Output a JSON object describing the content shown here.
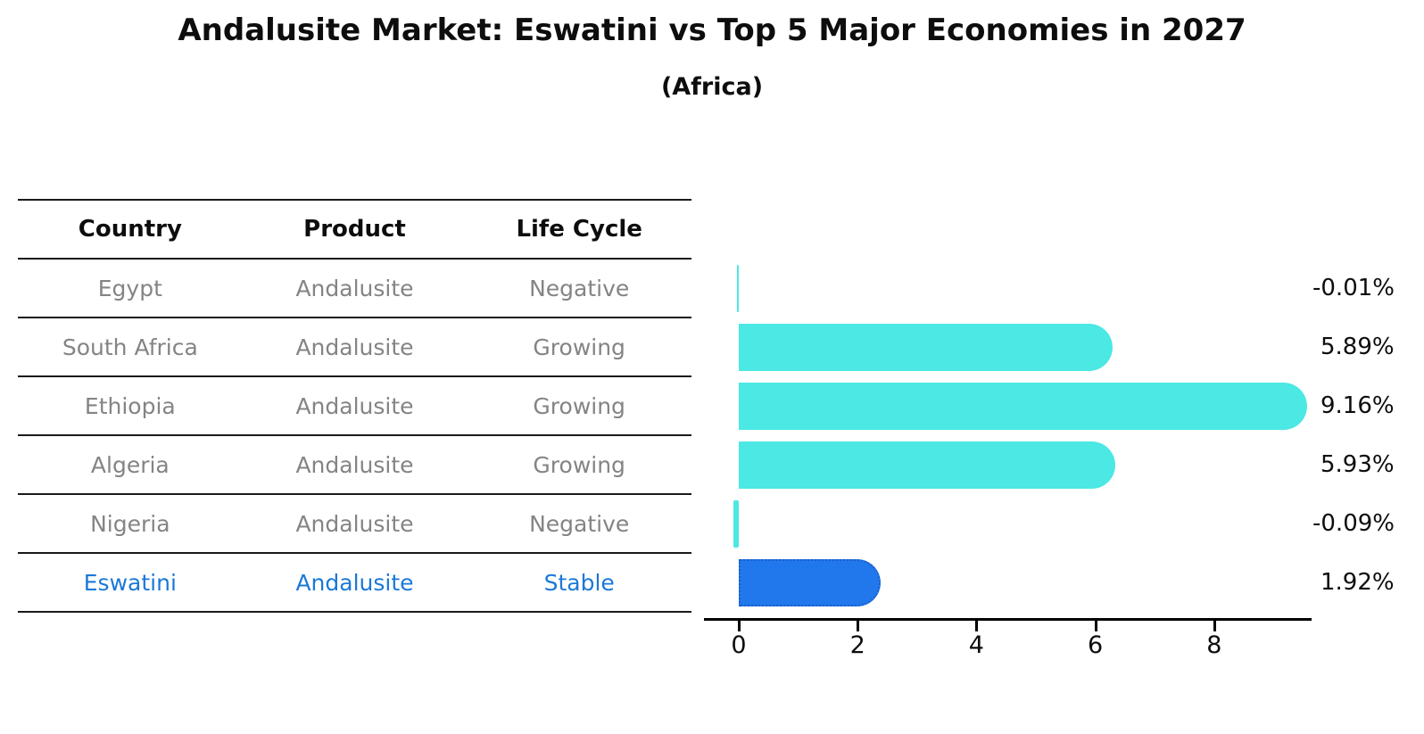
{
  "title": "Andalusite Market: Eswatini vs Top 5 Major Economies in 2027",
  "subtitle": "(Africa)",
  "colors": {
    "bar_default": "#4be8e4",
    "bar_highlight": "#2178ec",
    "bar_highlight_border": "#1a5fc8",
    "highlight_text": "#1b78d8",
    "table_text": "#848484",
    "header_text": "#0d0d0d",
    "axis": "#000000"
  },
  "table": {
    "headers": [
      "Country",
      "Product",
      "Life Cycle"
    ],
    "rows": [
      {
        "country": "Egypt",
        "product": "Andalusite",
        "life_cycle": "Negative"
      },
      {
        "country": "South Africa",
        "product": "Andalusite",
        "life_cycle": "Growing"
      },
      {
        "country": "Ethiopia",
        "product": "Andalusite",
        "life_cycle": "Growing"
      },
      {
        "country": "Algeria",
        "product": "Andalusite",
        "life_cycle": "Growing"
      },
      {
        "country": "Nigeria",
        "product": "Andalusite",
        "life_cycle": "Negative"
      },
      {
        "country": "Eswatini",
        "product": "Andalusite",
        "life_cycle": "Stable"
      }
    ],
    "highlight_row": "Eswatini"
  },
  "chart_data": {
    "type": "bar",
    "orientation": "horizontal",
    "categories": [
      "Egypt",
      "South Africa",
      "Ethiopia",
      "Algeria",
      "Nigeria",
      "Eswatini"
    ],
    "values": [
      -0.01,
      5.89,
      9.16,
      5.93,
      -0.09,
      1.92
    ],
    "value_labels": [
      "-0.01%",
      "5.89%",
      "9.16%",
      "5.93%",
      "-0.09%",
      "1.92%"
    ],
    "highlight_index": 5,
    "x_ticks": [
      0,
      2,
      4,
      6,
      8
    ],
    "xlim": [
      0,
      9.6
    ],
    "grid": false,
    "legend": false,
    "xlabel": "",
    "ylabel": ""
  }
}
